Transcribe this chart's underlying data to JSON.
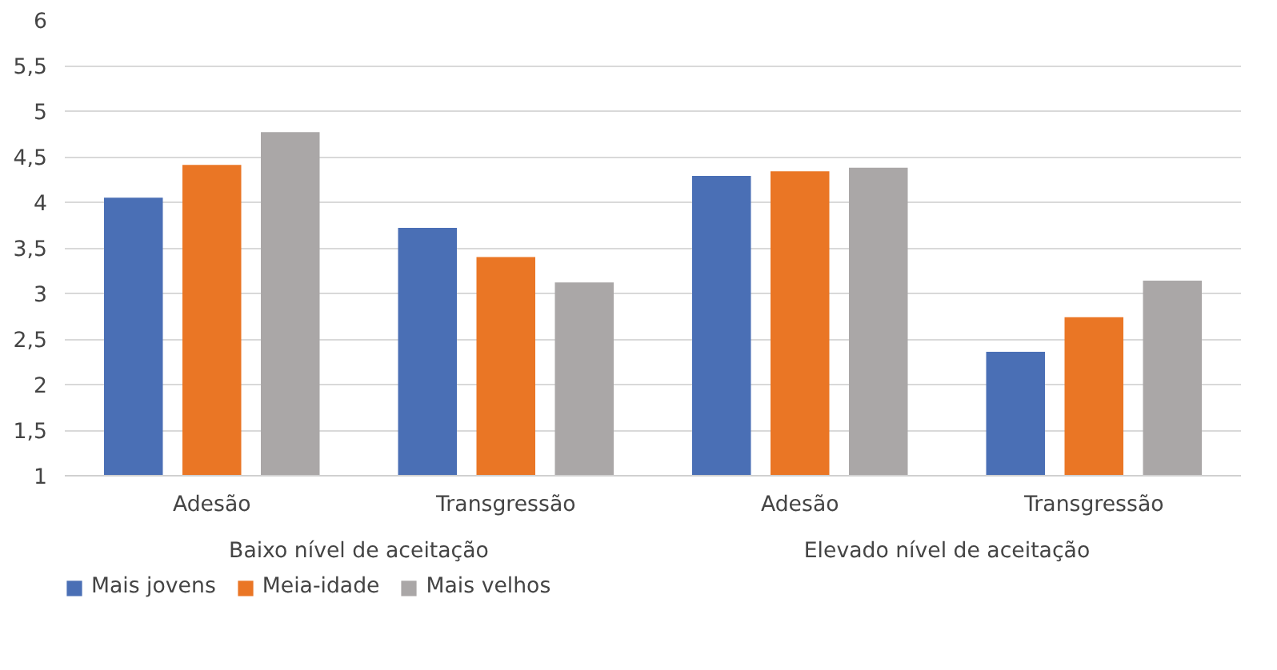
{
  "chart_data": {
    "type": "bar",
    "categories": [
      "Adesão",
      "Transgressão",
      "Adesão",
      "Transgressão"
    ],
    "series": [
      {
        "name": "Mais jovens",
        "color": "#4a6fb5",
        "values": [
          4.05,
          3.72,
          4.29,
          2.36
        ]
      },
      {
        "name": "Meia-idade",
        "color": "#ea7625",
        "values": [
          4.41,
          3.4,
          4.34,
          2.74
        ]
      },
      {
        "name": "Mais velhos",
        "color": "#aaa7a7",
        "values": [
          4.77,
          3.12,
          4.38,
          3.14
        ]
      }
    ],
    "ylim": [
      1,
      6
    ],
    "yticks": [
      1,
      {
        "value": 1.5,
        "label": "1,5"
      },
      2,
      {
        "value": 2.5,
        "label": "2,5"
      },
      3,
      {
        "value": 3.5,
        "label": "3,5"
      },
      4,
      {
        "value": 4.5,
        "label": "4,5"
      },
      5,
      {
        "value": 5.5,
        "label": "5,5"
      },
      6
    ],
    "annotations": [
      "Baixo nível de aceitação",
      "Elevado nível de aceitação"
    ],
    "grid": "y",
    "legend": "bottom left"
  }
}
